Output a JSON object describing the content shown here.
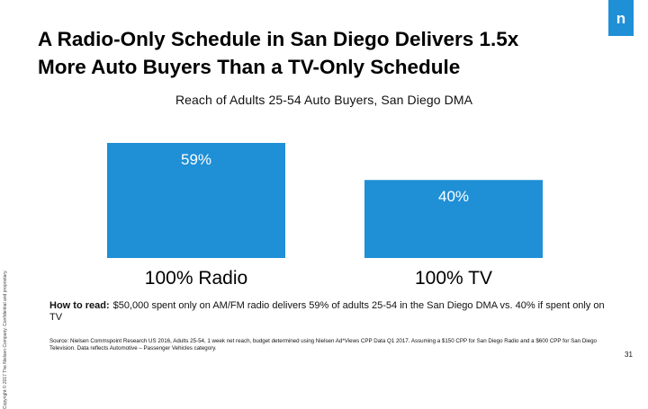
{
  "slide": {
    "title_line1": "A Radio-Only Schedule in San Diego Delivers 1.5x",
    "title_line2": "More Auto Buyers Than a TV-Only Schedule",
    "logo_letter": "n",
    "sidebar_note": "Copyright © 2017 The Nielsen Company. Confidential and proprietary.",
    "how_to_read_label": "How to read:",
    "how_to_read_text": "$50,000 spent only on AM/FM radio delivers 59% of adults 25-54 in the San Diego DMA vs. 40% if spent only on TV",
    "source": "Source: Nielsen Commspoint Research US 2016, Adults 25-54, 1 week net reach, budget determined using Nielsen Ad*Views CPP Data Q1 2017. Assuming a $150 CPP for San Diego Radio and a $600 CPP for San Diego Television. Data reflects Automotive – Passenger Vehicles category.",
    "page_number": "31"
  },
  "colors": {
    "bar": "#1f8fd6",
    "logo": "#1f8fd6"
  },
  "chart_data": {
    "type": "bar",
    "title": "Reach of Adults 25-54 Auto Buyers, San Diego DMA",
    "categories": [
      "100% Radio",
      "100% TV"
    ],
    "values": [
      59,
      40
    ],
    "value_labels": [
      "59%",
      "40%"
    ],
    "unit": "%",
    "ylim": [
      0,
      59
    ],
    "xlabel": "",
    "ylabel": "",
    "grid": false,
    "legend": "none"
  }
}
